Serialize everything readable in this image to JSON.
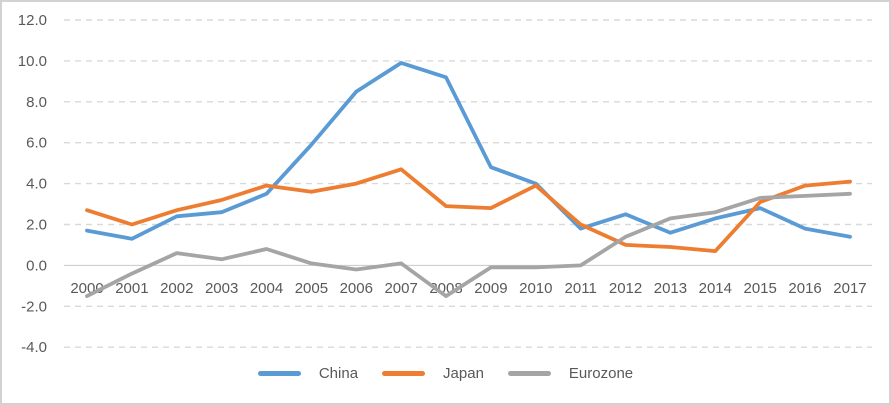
{
  "chart_data": {
    "type": "line",
    "title": "",
    "x": [
      "2000",
      "2001",
      "2002",
      "2003",
      "2004",
      "2005",
      "2006",
      "2007",
      "2008",
      "2009",
      "2010",
      "2011",
      "2012",
      "2013",
      "2014",
      "2015",
      "2016",
      "2017"
    ],
    "series": [
      {
        "name": "China",
        "color": "#5B9BD5",
        "values": [
          1.7,
          1.3,
          2.4,
          2.6,
          3.5,
          5.9,
          8.5,
          9.9,
          9.2,
          4.8,
          4.0,
          1.8,
          2.5,
          1.6,
          2.3,
          2.8,
          1.8,
          1.4
        ]
      },
      {
        "name": "Japan",
        "color": "#ED7D31",
        "values": [
          2.7,
          2.0,
          2.7,
          3.2,
          3.9,
          3.6,
          4.0,
          4.7,
          2.9,
          2.8,
          3.9,
          2.0,
          1.0,
          0.9,
          0.7,
          3.1,
          3.9,
          4.1
        ]
      },
      {
        "name": "Eurozone",
        "color": "#A5A5A5",
        "values": [
          -1.5,
          -0.4,
          0.6,
          0.3,
          0.8,
          0.1,
          -0.2,
          0.1,
          -1.5,
          -0.1,
          -0.1,
          0.0,
          1.4,
          2.3,
          2.6,
          3.3,
          3.4,
          3.5
        ]
      }
    ],
    "y_ticks": [
      {
        "value": 12,
        "label": "12.0"
      },
      {
        "value": 10,
        "label": "10.0"
      },
      {
        "value": 8,
        "label": "8.0"
      },
      {
        "value": 6,
        "label": "6.0"
      },
      {
        "value": 4,
        "label": "4.0"
      },
      {
        "value": 2,
        "label": "2.0"
      },
      {
        "value": 0,
        "label": "0.0"
      },
      {
        "value": -2,
        "label": "-2.0"
      },
      {
        "value": -4,
        "label": "-4.0"
      }
    ],
    "ylim": [
      -4,
      12
    ],
    "xlabel": "",
    "ylabel": "",
    "grid": "horizontal-dashed",
    "legend_position": "bottom-center",
    "styles": {
      "axis_text_color": "#595959",
      "gridline_color": "#D9D9D9",
      "zero_line_color": "#C8C8C8",
      "frame_border_color": "#D2D2D2",
      "background_color": "#FFFFFF"
    }
  }
}
